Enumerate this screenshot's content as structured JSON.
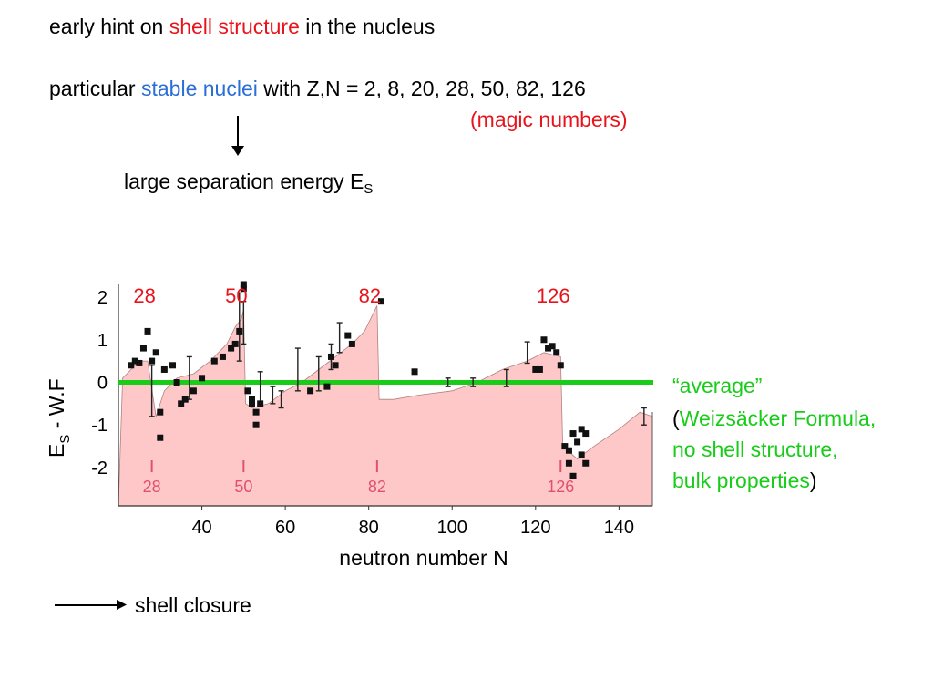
{
  "header": {
    "line1": {
      "pre": "early hint on ",
      "highlight": "shell structure",
      "post": " in the nucleus"
    },
    "line2": {
      "pre": "particular ",
      "highlight": "stable nuclei",
      "post": " with  Z,N = 2, 8, 20, 28, 50, 82, 126"
    },
    "magic_note": "(magic numbers)",
    "separation_label": "large separation energy E",
    "separation_sub": "S"
  },
  "annotation": {
    "average": "“average”",
    "paren_open": "(",
    "line1": "Weizsäcker Formula,",
    "line2": "no shell structure,",
    "line3": "bulk properties",
    "paren_close": ")"
  },
  "footer": {
    "shell_closure": "shell closure"
  },
  "colors": {
    "red": "#e8141c",
    "blue": "#2b6fd6",
    "green": "#19cc19",
    "fill": "#ffc8c8",
    "shell_closure_marker": "#e05070"
  },
  "chart_data": {
    "type": "scatter",
    "xlabel": "neutron number N",
    "ylabel": "E_S - W.F",
    "xlim": [
      20,
      148
    ],
    "ylim": [
      -2.9,
      2.3
    ],
    "xticks": [
      40,
      60,
      80,
      100,
      120,
      140
    ],
    "yticks": [
      2,
      1,
      0,
      -1,
      -2
    ],
    "magic_numbers_top": [
      "28",
      "50",
      "82",
      "126"
    ],
    "magic_numbers_bottom": [
      "28",
      "50",
      "82",
      "126"
    ],
    "magic_positions": [
      28,
      50,
      82,
      126
    ],
    "average_line_y": 0,
    "envelope": [
      [
        20,
        -2.9
      ],
      [
        21,
        0.1
      ],
      [
        22,
        0.2
      ],
      [
        25,
        0.5
      ],
      [
        27,
        0.5
      ],
      [
        29,
        -0.8
      ],
      [
        31,
        -0.2
      ],
      [
        34,
        0.1
      ],
      [
        38,
        0.2
      ],
      [
        42,
        0.5
      ],
      [
        46,
        0.9
      ],
      [
        48,
        1.3
      ],
      [
        49.5,
        1.5
      ],
      [
        50,
        1.7
      ],
      [
        50.5,
        -0.5
      ],
      [
        52,
        -0.6
      ],
      [
        56,
        -0.5
      ],
      [
        60,
        -0.2
      ],
      [
        64,
        0
      ],
      [
        68,
        0.3
      ],
      [
        72,
        0.6
      ],
      [
        76,
        0.9
      ],
      [
        79,
        1.2
      ],
      [
        82,
        1.8
      ],
      [
        82.5,
        -0.4
      ],
      [
        86,
        -0.4
      ],
      [
        92,
        -0.3
      ],
      [
        100,
        -0.2
      ],
      [
        106,
        0
      ],
      [
        112,
        0.3
      ],
      [
        118,
        0.5
      ],
      [
        122,
        0.7
      ],
      [
        126,
        0.6
      ],
      [
        126.5,
        -1.5
      ],
      [
        130,
        -1.8
      ],
      [
        134,
        -1.5
      ],
      [
        140,
        -1.1
      ],
      [
        145,
        -0.7
      ],
      [
        148,
        -0.8
      ],
      [
        148,
        -2.9
      ]
    ],
    "points": [
      [
        23,
        0.4
      ],
      [
        24,
        0.5
      ],
      [
        25,
        0.45
      ],
      [
        26,
        0.8
      ],
      [
        27,
        1.2
      ],
      [
        28,
        0.5
      ],
      [
        29,
        0.7
      ],
      [
        30,
        -0.7
      ],
      [
        30,
        -1.3
      ],
      [
        31,
        0.3
      ],
      [
        33,
        0.4
      ],
      [
        34,
        0
      ],
      [
        35,
        -0.5
      ],
      [
        36,
        -0.4
      ],
      [
        38,
        -0.2
      ],
      [
        40,
        0.1
      ],
      [
        43,
        0.5
      ],
      [
        45,
        0.6
      ],
      [
        47,
        0.8
      ],
      [
        48,
        0.9
      ],
      [
        49,
        1.2
      ],
      [
        50,
        2.3
      ],
      [
        50,
        2.2
      ],
      [
        51,
        -0.2
      ],
      [
        52,
        -0.5
      ],
      [
        52,
        -0.4
      ],
      [
        53,
        -0.7
      ],
      [
        53,
        -1
      ],
      [
        54,
        -0.5
      ],
      [
        66,
        -0.2
      ],
      [
        70,
        -0.1
      ],
      [
        71,
        0.6
      ],
      [
        72,
        0.4
      ],
      [
        75,
        1.1
      ],
      [
        76,
        0.9
      ],
      [
        83,
        1.9
      ],
      [
        91,
        0.25
      ],
      [
        120,
        0.3
      ],
      [
        121,
        0.3
      ],
      [
        122,
        1
      ],
      [
        123,
        0.8
      ],
      [
        124,
        0.85
      ],
      [
        125,
        0.7
      ],
      [
        126,
        0.4
      ],
      [
        127,
        -1.5
      ],
      [
        128,
        -1.6
      ],
      [
        128,
        -1.9
      ],
      [
        129,
        -2.2
      ],
      [
        129,
        -1.2
      ],
      [
        130,
        -1.4
      ],
      [
        131,
        -1.7
      ],
      [
        131,
        -1.1
      ],
      [
        132,
        -1.2
      ],
      [
        132,
        -1.9
      ]
    ],
    "errorbars": [
      [
        28,
        -0.2,
        0.6
      ],
      [
        37,
        0.1,
        0.5
      ],
      [
        49,
        1.3,
        0.8
      ],
      [
        50,
        1.4,
        0.5
      ],
      [
        54,
        -0.15,
        0.4
      ],
      [
        57,
        -0.3,
        0.2
      ],
      [
        59,
        -0.4,
        0.2
      ],
      [
        63,
        0.3,
        0.5
      ],
      [
        68,
        0.2,
        0.4
      ],
      [
        71,
        0.6,
        0.3
      ],
      [
        73,
        1.05,
        0.35
      ],
      [
        99,
        0,
        0.1
      ],
      [
        105,
        0,
        0.1
      ],
      [
        113,
        0.1,
        0.2
      ],
      [
        118,
        0.7,
        0.25
      ],
      [
        146,
        -0.8,
        0.2
      ]
    ]
  }
}
